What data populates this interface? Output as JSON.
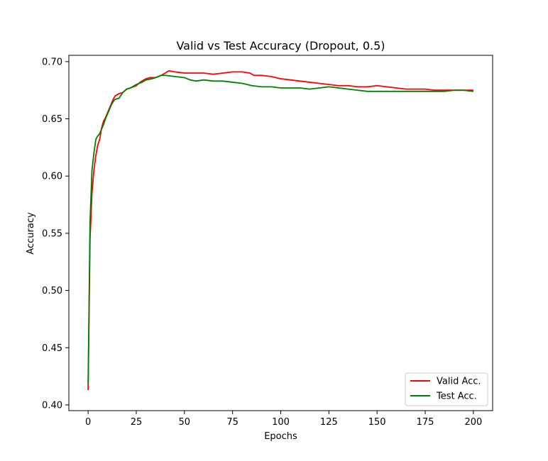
{
  "chart_data": {
    "type": "line",
    "title": "Valid vs Test Accuracy (Dropout, 0.5)",
    "xlabel": "Epochs",
    "ylabel": "Accuracy",
    "xlim": [
      -10,
      210
    ],
    "ylim": [
      0.395,
      0.7055
    ],
    "xticks": [
      0,
      25,
      50,
      75,
      100,
      125,
      150,
      175,
      200
    ],
    "yticks": [
      0.4,
      0.45,
      0.5,
      0.55,
      0.6,
      0.65,
      0.7
    ],
    "xtick_labels": [
      "0",
      "25",
      "50",
      "75",
      "100",
      "125",
      "150",
      "175",
      "200"
    ],
    "ytick_labels": [
      "0.40",
      "0.45",
      "0.50",
      "0.55",
      "0.60",
      "0.65",
      "0.70"
    ],
    "grid": false,
    "legend_position": "lower-right",
    "series": [
      {
        "name": "Valid Acc.",
        "color": "#ff0000",
        "points": [
          [
            0,
            0.413
          ],
          [
            1,
            0.545
          ],
          [
            2,
            0.585
          ],
          [
            3,
            0.605
          ],
          [
            4,
            0.618
          ],
          [
            5,
            0.627
          ],
          [
            6,
            0.632
          ],
          [
            7,
            0.642
          ],
          [
            8,
            0.648
          ],
          [
            9,
            0.651
          ],
          [
            10,
            0.655
          ],
          [
            11,
            0.659
          ],
          [
            12,
            0.663
          ],
          [
            13,
            0.667
          ],
          [
            14,
            0.67
          ],
          [
            15,
            0.671
          ],
          [
            16,
            0.672
          ],
          [
            18,
            0.673
          ],
          [
            20,
            0.676
          ],
          [
            22,
            0.677
          ],
          [
            25,
            0.679
          ],
          [
            27,
            0.682
          ],
          [
            30,
            0.685
          ],
          [
            32,
            0.686
          ],
          [
            35,
            0.686
          ],
          [
            38,
            0.688
          ],
          [
            40,
            0.69
          ],
          [
            42,
            0.692
          ],
          [
            45,
            0.691
          ],
          [
            50,
            0.69
          ],
          [
            55,
            0.69
          ],
          [
            60,
            0.69
          ],
          [
            65,
            0.689
          ],
          [
            70,
            0.69
          ],
          [
            75,
            0.691
          ],
          [
            80,
            0.691
          ],
          [
            84,
            0.69
          ],
          [
            86,
            0.688
          ],
          [
            90,
            0.688
          ],
          [
            95,
            0.687
          ],
          [
            100,
            0.685
          ],
          [
            105,
            0.684
          ],
          [
            110,
            0.683
          ],
          [
            115,
            0.682
          ],
          [
            120,
            0.681
          ],
          [
            125,
            0.68
          ],
          [
            130,
            0.679
          ],
          [
            135,
            0.679
          ],
          [
            140,
            0.678
          ],
          [
            145,
            0.678
          ],
          [
            150,
            0.679
          ],
          [
            155,
            0.678
          ],
          [
            160,
            0.677
          ],
          [
            165,
            0.676
          ],
          [
            170,
            0.676
          ],
          [
            175,
            0.676
          ],
          [
            180,
            0.675
          ],
          [
            185,
            0.675
          ],
          [
            190,
            0.675
          ],
          [
            195,
            0.675
          ],
          [
            200,
            0.675
          ]
        ]
      },
      {
        "name": "Test Acc.",
        "color": "#008000",
        "points": [
          [
            0,
            0.418
          ],
          [
            1,
            0.56
          ],
          [
            2,
            0.605
          ],
          [
            3,
            0.62
          ],
          [
            4,
            0.632
          ],
          [
            5,
            0.635
          ],
          [
            6,
            0.637
          ],
          [
            7,
            0.641
          ],
          [
            8,
            0.645
          ],
          [
            9,
            0.65
          ],
          [
            10,
            0.654
          ],
          [
            11,
            0.658
          ],
          [
            12,
            0.662
          ],
          [
            13,
            0.665
          ],
          [
            14,
            0.667
          ],
          [
            16,
            0.668
          ],
          [
            18,
            0.673
          ],
          [
            20,
            0.676
          ],
          [
            22,
            0.677
          ],
          [
            25,
            0.68
          ],
          [
            28,
            0.682
          ],
          [
            30,
            0.684
          ],
          [
            33,
            0.685
          ],
          [
            35,
            0.686
          ],
          [
            38,
            0.688
          ],
          [
            40,
            0.688
          ],
          [
            45,
            0.687
          ],
          [
            50,
            0.686
          ],
          [
            53,
            0.684
          ],
          [
            56,
            0.683
          ],
          [
            60,
            0.684
          ],
          [
            65,
            0.683
          ],
          [
            70,
            0.683
          ],
          [
            75,
            0.682
          ],
          [
            80,
            0.681
          ],
          [
            85,
            0.679
          ],
          [
            90,
            0.678
          ],
          [
            95,
            0.678
          ],
          [
            100,
            0.677
          ],
          [
            105,
            0.677
          ],
          [
            110,
            0.677
          ],
          [
            115,
            0.676
          ],
          [
            120,
            0.677
          ],
          [
            125,
            0.678
          ],
          [
            130,
            0.677
          ],
          [
            135,
            0.676
          ],
          [
            140,
            0.675
          ],
          [
            145,
            0.674
          ],
          [
            150,
            0.674
          ],
          [
            155,
            0.674
          ],
          [
            160,
            0.674
          ],
          [
            165,
            0.674
          ],
          [
            170,
            0.674
          ],
          [
            175,
            0.674
          ],
          [
            180,
            0.674
          ],
          [
            185,
            0.674
          ],
          [
            190,
            0.675
          ],
          [
            195,
            0.675
          ],
          [
            200,
            0.674
          ]
        ]
      }
    ]
  }
}
